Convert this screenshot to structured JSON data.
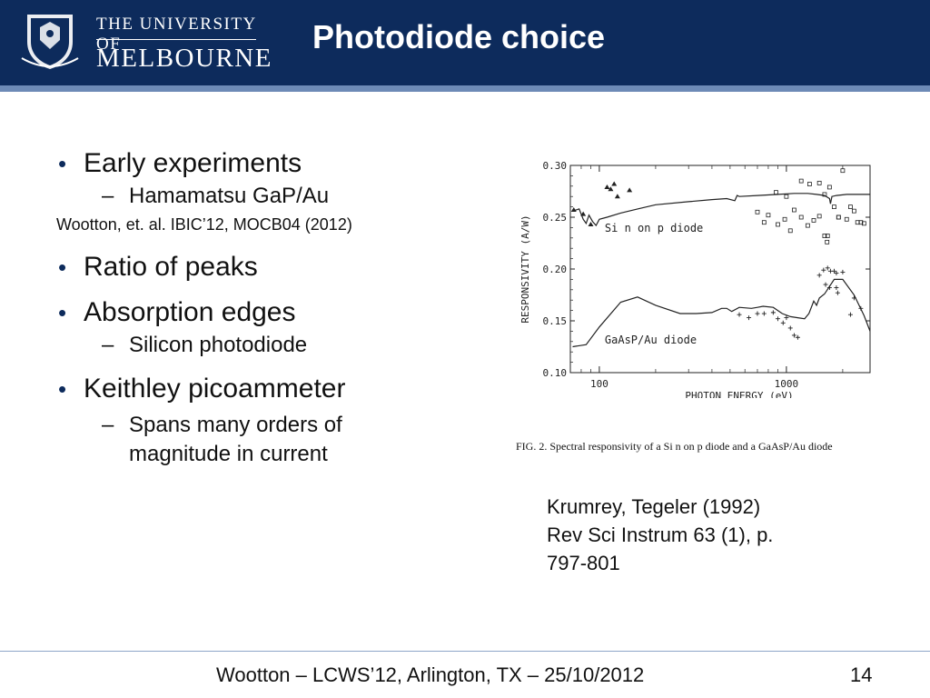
{
  "header": {
    "logo_top": "THE UNIVERSITY OF",
    "logo_bottom": "MELBOURNE",
    "title": "Photodiode choice"
  },
  "bullets": {
    "item1": "Early experiments",
    "item1_sub1": "Hamamatsu GaP/Au",
    "note": "Wootton, et. al. IBIC’12, MOCB04 (2012)",
    "item2": "Ratio of peaks",
    "item3": "Absorption edges",
    "item3_sub1": "Silicon photodiode",
    "item4": "Keithley picoammeter",
    "item4_sub1_line1": "Spans many orders of",
    "item4_sub1_line2": "magnitude in current",
    "bullet_glyph": "•",
    "dash_glyph": "–"
  },
  "chart_data": {
    "type": "line",
    "xlabel": "PHOTON ENERGY (eV)",
    "ylabel": "RESPONSIVITY (A/W)",
    "xscale": "log",
    "xlim": [
      70,
      2800
    ],
    "ylim": [
      0.1,
      0.3
    ],
    "x_ticks": [
      100,
      1000
    ],
    "y_ticks": [
      0.1,
      0.15,
      0.2,
      0.25,
      0.3
    ],
    "y_tick_labels": [
      "0.10",
      "0.15",
      "0.20",
      "0.25",
      "0.30"
    ],
    "annotations": [
      "Si n on p diode",
      "GaAsP/Au diode"
    ],
    "series": [
      {
        "label": "Si",
        "x": [
          72,
          78,
          82,
          85,
          88,
          92,
          96,
          100,
          110,
          130,
          160,
          200,
          300,
          400,
          480,
          530,
          545,
          560,
          700,
          900,
          1100,
          1300,
          1450,
          1600,
          1700,
          1720,
          1750,
          1850,
          2100,
          2500,
          2800
        ],
        "values": [
          0.256,
          0.258,
          0.248,
          0.244,
          0.252,
          0.246,
          0.242,
          0.248,
          0.25,
          0.254,
          0.258,
          0.262,
          0.265,
          0.267,
          0.268,
          0.266,
          0.271,
          0.27,
          0.271,
          0.272,
          0.273,
          0.273,
          0.272,
          0.271,
          0.268,
          0.263,
          0.27,
          0.271,
          0.272,
          0.272,
          0.272
        ],
        "points_square": [
          [
            880,
            0.274
          ],
          [
            1000,
            0.27
          ],
          [
            1200,
            0.285
          ],
          [
            1330,
            0.282
          ],
          [
            1500,
            0.283
          ],
          [
            1600,
            0.272
          ],
          [
            2000,
            0.295
          ],
          [
            1700,
            0.279
          ],
          [
            2500,
            0.245
          ],
          [
            2200,
            0.26
          ],
          [
            1900,
            0.25
          ],
          [
            700,
            0.255
          ],
          [
            760,
            0.245
          ],
          [
            800,
            0.252
          ],
          [
            900,
            0.243
          ],
          [
            980,
            0.248
          ],
          [
            1050,
            0.237
          ],
          [
            1100,
            0.257
          ],
          [
            1200,
            0.25
          ],
          [
            1300,
            0.242
          ],
          [
            1400,
            0.247
          ],
          [
            1500,
            0.251
          ],
          [
            1600,
            0.232
          ],
          [
            1800,
            0.26
          ],
          [
            1900,
            0.25
          ],
          [
            2100,
            0.248
          ],
          [
            2300,
            0.256
          ],
          [
            2400,
            0.245
          ],
          [
            1650,
            0.226
          ],
          [
            1660,
            0.232
          ],
          [
            2600,
            0.244
          ]
        ],
        "points_triangle": [
          [
            73,
            0.257
          ],
          [
            82,
            0.253
          ],
          [
            90,
            0.243
          ],
          [
            110,
            0.279
          ],
          [
            115,
            0.277
          ],
          [
            120,
            0.282
          ],
          [
            125,
            0.27
          ],
          [
            145,
            0.276
          ]
        ]
      },
      {
        "label": "GaAsP/Au",
        "x": [
          72,
          85,
          100,
          130,
          160,
          200,
          270,
          330,
          400,
          450,
          480,
          510,
          560,
          650,
          700,
          750,
          850,
          950,
          1050,
          1150,
          1250,
          1320,
          1400,
          1450,
          1500,
          1600,
          1800,
          2000,
          2300,
          2600,
          2800
        ],
        "values": [
          0.125,
          0.127,
          0.144,
          0.168,
          0.173,
          0.165,
          0.157,
          0.157,
          0.158,
          0.162,
          0.162,
          0.159,
          0.163,
          0.162,
          0.163,
          0.164,
          0.163,
          0.157,
          0.154,
          0.153,
          0.152,
          0.157,
          0.169,
          0.165,
          0.172,
          0.176,
          0.19,
          0.19,
          0.175,
          0.155,
          0.14
        ],
        "points_plus": [
          [
            1500,
            0.194
          ],
          [
            1580,
            0.199
          ],
          [
            1660,
            0.201
          ],
          [
            1720,
            0.198
          ],
          [
            1800,
            0.198
          ],
          [
            1850,
            0.196
          ],
          [
            2000,
            0.197
          ],
          [
            1620,
            0.185
          ],
          [
            1700,
            0.182
          ],
          [
            1850,
            0.182
          ],
          [
            1880,
            0.177
          ],
          [
            2300,
            0.172
          ],
          [
            2500,
            0.162
          ],
          [
            2200,
            0.156
          ],
          [
            560,
            0.156
          ],
          [
            630,
            0.153
          ],
          [
            700,
            0.157
          ],
          [
            760,
            0.157
          ],
          [
            850,
            0.158
          ],
          [
            900,
            0.152
          ],
          [
            960,
            0.148
          ],
          [
            1000,
            0.153
          ],
          [
            1050,
            0.143
          ],
          [
            1100,
            0.136
          ],
          [
            1150,
            0.134
          ]
        ]
      }
    ]
  },
  "figure": {
    "caption": "FIG. 2. Spectral responsivity of a Si n on p diode and a GaAsP/Au diode"
  },
  "reference": {
    "line1": "Krumrey, Tegeler (1992)",
    "line2": "Rev Sci Instrum 63 (1), p.",
    "line3": "797-801"
  },
  "footer": {
    "text": "Wootton – LCWS’12, Arlington, TX – 25/10/2012",
    "page": "14"
  },
  "colors": {
    "header_bg": "#0d2b5c",
    "header_rule": "#6d8ab6",
    "bullet": "#0d2b5c"
  }
}
